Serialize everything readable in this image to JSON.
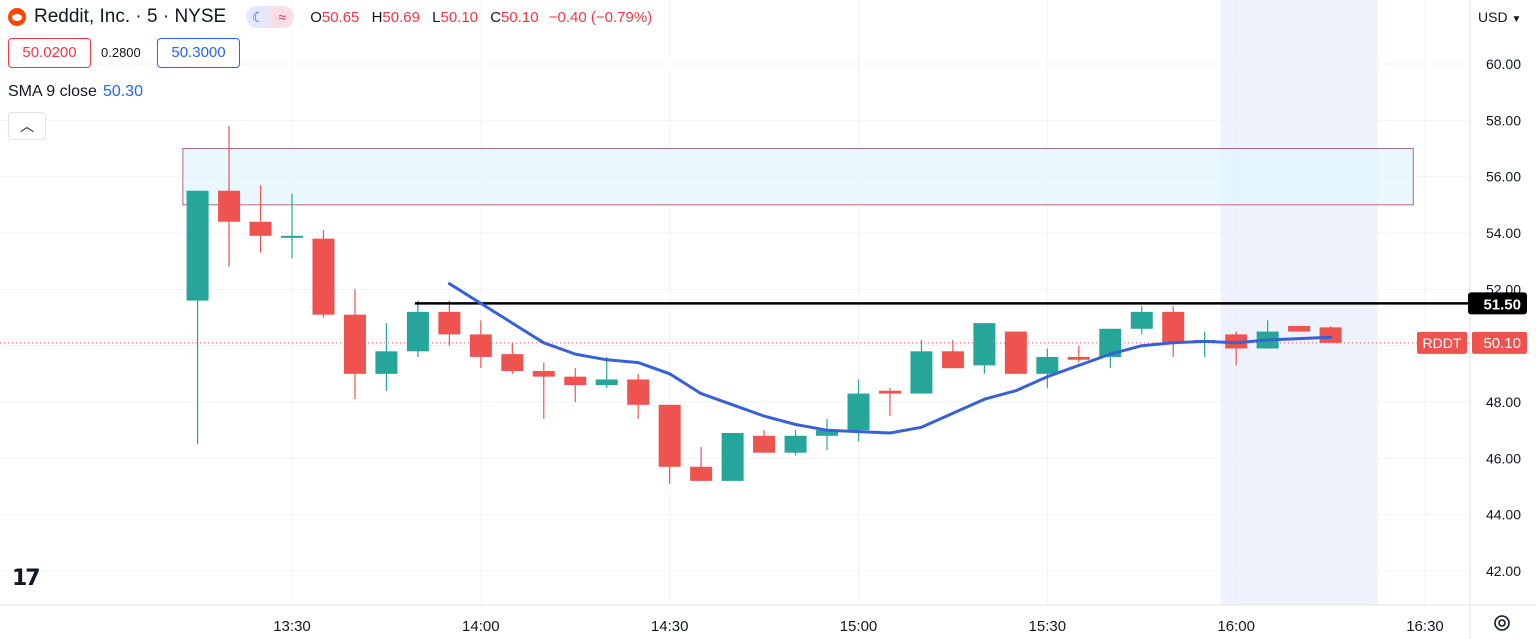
{
  "header": {
    "symbol_line": "Reddit, Inc. · 5 · NYSE",
    "ohlc": [
      {
        "key": "O",
        "value": "50.65"
      },
      {
        "key": "H",
        "value": "50.69"
      },
      {
        "key": "L",
        "value": "50.10"
      },
      {
        "key": "C",
        "value": "50.10"
      }
    ],
    "change": "−0.40 (−0.79%)",
    "currency": "USD"
  },
  "trade": {
    "bid": "50.0200",
    "spread": "0.2800",
    "ask": "50.3000"
  },
  "indicator": {
    "label": "SMA 9 close",
    "value": "50.30"
  },
  "colors": {
    "up": "#26a69a",
    "down": "#ef5350",
    "sma": "#3861d6",
    "zone_fill": "#e1f5fe",
    "zone_border": "#b06a85",
    "level": "#000000",
    "ticker_bg": "#ef5350"
  },
  "icons": {
    "collapse": "chevron-up-icon",
    "settings": "gear-icon",
    "logo": "reddit-logo",
    "tv_logo": "tradingview-logo"
  },
  "chart_data": {
    "type": "candlestick",
    "x_tick_labels": [
      "13:30",
      "14:00",
      "14:30",
      "15:00",
      "15:30",
      "16:00",
      "16:30"
    ],
    "y_tick_labels": [
      "42.00",
      "44.00",
      "46.00",
      "48.00",
      "50.00",
      "52.00",
      "54.00",
      "56.00",
      "58.00",
      "60.00"
    ],
    "ylim": [
      40.7,
      61.8
    ],
    "session_end_highlight": [
      "16:00",
      "16:20"
    ],
    "candles": [
      {
        "t": "13:15",
        "o": 51.6,
        "h": 55.5,
        "l": 46.5,
        "c": 55.5
      },
      {
        "t": "13:20",
        "o": 55.5,
        "h": 57.8,
        "l": 52.8,
        "c": 54.4
      },
      {
        "t": "13:25",
        "o": 54.4,
        "h": 55.7,
        "l": 53.3,
        "c": 53.9
      },
      {
        "t": "13:30",
        "o": 53.9,
        "h": 55.4,
        "l": 53.1,
        "c": 53.9
      },
      {
        "t": "13:35",
        "o": 53.8,
        "h": 54.1,
        "l": 51.0,
        "c": 51.1
      },
      {
        "t": "13:40",
        "o": 51.1,
        "h": 52.0,
        "l": 48.1,
        "c": 49.0
      },
      {
        "t": "13:45",
        "o": 49.0,
        "h": 50.8,
        "l": 48.4,
        "c": 49.8
      },
      {
        "t": "13:50",
        "o": 49.8,
        "h": 51.6,
        "l": 49.6,
        "c": 51.2
      },
      {
        "t": "13:55",
        "o": 51.2,
        "h": 51.6,
        "l": 50.0,
        "c": 50.4
      },
      {
        "t": "14:00",
        "o": 50.4,
        "h": 50.9,
        "l": 49.2,
        "c": 49.6
      },
      {
        "t": "14:05",
        "o": 49.7,
        "h": 50.1,
        "l": 49.0,
        "c": 49.1
      },
      {
        "t": "14:10",
        "o": 49.1,
        "h": 49.4,
        "l": 47.4,
        "c": 48.9
      },
      {
        "t": "14:15",
        "o": 48.9,
        "h": 49.2,
        "l": 48.0,
        "c": 48.6
      },
      {
        "t": "14:20",
        "o": 48.6,
        "h": 49.6,
        "l": 48.5,
        "c": 48.8
      },
      {
        "t": "14:25",
        "o": 48.8,
        "h": 49.0,
        "l": 47.4,
        "c": 47.9
      },
      {
        "t": "14:30",
        "o": 47.9,
        "h": 47.9,
        "l": 45.1,
        "c": 45.7
      },
      {
        "t": "14:35",
        "o": 45.7,
        "h": 46.4,
        "l": 45.2,
        "c": 45.2
      },
      {
        "t": "14:40",
        "o": 45.2,
        "h": 46.9,
        "l": 45.2,
        "c": 46.9
      },
      {
        "t": "14:45",
        "o": 46.8,
        "h": 47.0,
        "l": 46.2,
        "c": 46.2
      },
      {
        "t": "14:50",
        "o": 46.2,
        "h": 47.0,
        "l": 46.1,
        "c": 46.8
      },
      {
        "t": "14:55",
        "o": 46.8,
        "h": 47.4,
        "l": 46.3,
        "c": 47.0
      },
      {
        "t": "15:00",
        "o": 47.0,
        "h": 48.8,
        "l": 46.6,
        "c": 48.3
      },
      {
        "t": "15:05",
        "o": 48.4,
        "h": 48.5,
        "l": 47.5,
        "c": 48.3
      },
      {
        "t": "15:10",
        "o": 48.3,
        "h": 50.2,
        "l": 48.3,
        "c": 49.8
      },
      {
        "t": "15:15",
        "o": 49.8,
        "h": 50.2,
        "l": 49.2,
        "c": 49.2
      },
      {
        "t": "15:20",
        "o": 49.3,
        "h": 50.8,
        "l": 49.0,
        "c": 50.8
      },
      {
        "t": "15:25",
        "o": 50.5,
        "h": 50.5,
        "l": 49.0,
        "c": 49.0
      },
      {
        "t": "15:30",
        "o": 49.0,
        "h": 49.9,
        "l": 48.5,
        "c": 49.6
      },
      {
        "t": "15:35",
        "o": 49.6,
        "h": 50.0,
        "l": 49.4,
        "c": 49.5
      },
      {
        "t": "15:40",
        "o": 49.6,
        "h": 50.6,
        "l": 49.2,
        "c": 50.6
      },
      {
        "t": "15:45",
        "o": 50.6,
        "h": 51.4,
        "l": 50.4,
        "c": 51.2
      },
      {
        "t": "15:50",
        "o": 51.2,
        "h": 51.4,
        "l": 49.6,
        "c": 50.1
      },
      {
        "t": "15:55",
        "o": 50.1,
        "h": 50.5,
        "l": 49.6,
        "c": 50.2
      },
      {
        "t": "16:00",
        "o": 50.4,
        "h": 50.5,
        "l": 49.3,
        "c": 49.9
      },
      {
        "t": "16:05",
        "o": 49.9,
        "h": 50.9,
        "l": 49.9,
        "c": 50.5
      },
      {
        "t": "16:10",
        "o": 50.7,
        "h": 50.7,
        "l": 50.5,
        "c": 50.5
      },
      {
        "t": "16:15",
        "o": 50.65,
        "h": 50.69,
        "l": 50.1,
        "c": 50.1
      }
    ],
    "sma9": [
      {
        "t": "13:55",
        "v": 52.2
      },
      {
        "t": "14:00",
        "v": 51.5
      },
      {
        "t": "14:05",
        "v": 50.8
      },
      {
        "t": "14:10",
        "v": 50.1
      },
      {
        "t": "14:15",
        "v": 49.7
      },
      {
        "t": "14:20",
        "v": 49.5
      },
      {
        "t": "14:25",
        "v": 49.4
      },
      {
        "t": "14:30",
        "v": 49.0
      },
      {
        "t": "14:35",
        "v": 48.3
      },
      {
        "t": "14:40",
        "v": 47.9
      },
      {
        "t": "14:45",
        "v": 47.5
      },
      {
        "t": "14:50",
        "v": 47.2
      },
      {
        "t": "14:55",
        "v": 47.0
      },
      {
        "t": "15:00",
        "v": 46.95
      },
      {
        "t": "15:05",
        "v": 46.9
      },
      {
        "t": "15:10",
        "v": 47.1
      },
      {
        "t": "15:15",
        "v": 47.6
      },
      {
        "t": "15:20",
        "v": 48.1
      },
      {
        "t": "15:25",
        "v": 48.4
      },
      {
        "t": "15:30",
        "v": 48.9
      },
      {
        "t": "15:35",
        "v": 49.3
      },
      {
        "t": "15:40",
        "v": 49.7
      },
      {
        "t": "15:45",
        "v": 50.0
      },
      {
        "t": "15:50",
        "v": 50.1
      },
      {
        "t": "15:55",
        "v": 50.15
      },
      {
        "t": "16:00",
        "v": 50.1
      },
      {
        "t": "16:05",
        "v": 50.2
      },
      {
        "t": "16:10",
        "v": 50.25
      },
      {
        "t": "16:15",
        "v": 50.3
      }
    ],
    "horizontal_level": {
      "value": 51.5,
      "from": "13:50",
      "label": "51.50"
    },
    "zone": {
      "top": 57.0,
      "bottom": 55.0,
      "from": "13:15",
      "to": "16:25"
    },
    "last_price": {
      "value": 50.1,
      "label": "50.10",
      "ticker": "RDDT"
    }
  }
}
